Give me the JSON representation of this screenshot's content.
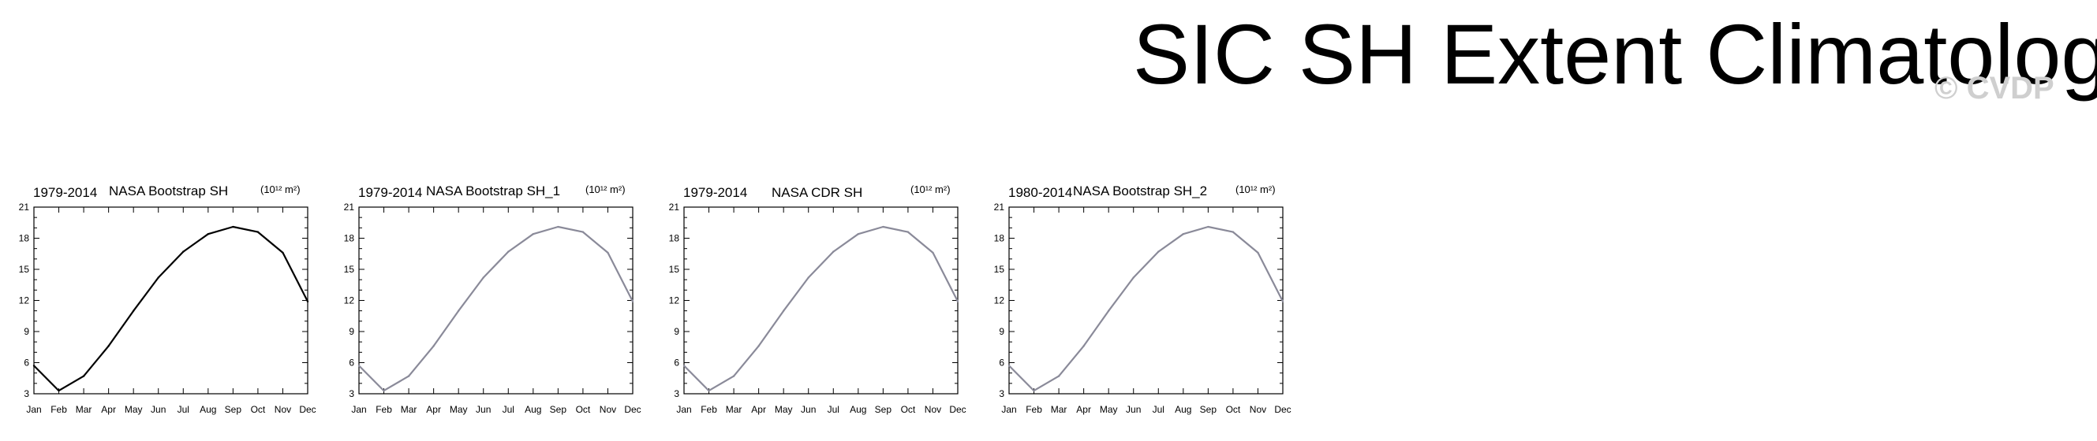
{
  "title": "SIC SH Extent Climatology",
  "watermark": "© CVDP",
  "units": "(10¹² m²)",
  "chart_data": [
    {
      "type": "line",
      "period": "1979-2014",
      "name": "NASA Bootstrap SH",
      "units": "(10¹² m²)",
      "color": "#000000",
      "categories": [
        "Jan",
        "Feb",
        "Mar",
        "Apr",
        "May",
        "Jun",
        "Jul",
        "Aug",
        "Sep",
        "Oct",
        "Nov",
        "Dec"
      ],
      "values": [
        5.7,
        3.3,
        4.7,
        7.6,
        11.0,
        14.2,
        16.7,
        18.4,
        19.1,
        18.6,
        16.6,
        11.9
      ],
      "yticks": [
        3,
        6,
        9,
        12,
        15,
        18,
        21
      ],
      "ylim": [
        3,
        21
      ]
    },
    {
      "type": "line",
      "period": "1979-2014",
      "name": "NASA Bootstrap SH_1",
      "units": "(10¹² m²)",
      "color": "#8a8a99",
      "categories": [
        "Jan",
        "Feb",
        "Mar",
        "Apr",
        "May",
        "Jun",
        "Jul",
        "Aug",
        "Sep",
        "Oct",
        "Nov",
        "Dec"
      ],
      "values": [
        5.7,
        3.3,
        4.7,
        7.6,
        11.0,
        14.2,
        16.7,
        18.4,
        19.1,
        18.6,
        16.6,
        11.9
      ],
      "yticks": [
        3,
        6,
        9,
        12,
        15,
        18,
        21
      ],
      "ylim": [
        3,
        21
      ]
    },
    {
      "type": "line",
      "period": "1979-2014",
      "name": "NASA CDR SH",
      "units": "(10¹² m²)",
      "color": "#8a8a99",
      "categories": [
        "Jan",
        "Feb",
        "Mar",
        "Apr",
        "May",
        "Jun",
        "Jul",
        "Aug",
        "Sep",
        "Oct",
        "Nov",
        "Dec"
      ],
      "values": [
        5.7,
        3.3,
        4.7,
        7.6,
        11.0,
        14.2,
        16.7,
        18.4,
        19.1,
        18.6,
        16.6,
        11.9
      ],
      "yticks": [
        3,
        6,
        9,
        12,
        15,
        18,
        21
      ],
      "ylim": [
        3,
        21
      ]
    },
    {
      "type": "line",
      "period": "1980-2014",
      "name": "NASA Bootstrap SH_2",
      "units": "(10¹² m²)",
      "color": "#8a8a99",
      "categories": [
        "Jan",
        "Feb",
        "Mar",
        "Apr",
        "May",
        "Jun",
        "Jul",
        "Aug",
        "Sep",
        "Oct",
        "Nov",
        "Dec"
      ],
      "values": [
        5.7,
        3.3,
        4.7,
        7.6,
        11.0,
        14.2,
        16.7,
        18.4,
        19.1,
        18.6,
        16.6,
        11.9
      ],
      "yticks": [
        3,
        6,
        9,
        12,
        15,
        18,
        21
      ],
      "ylim": [
        3,
        21
      ]
    }
  ]
}
